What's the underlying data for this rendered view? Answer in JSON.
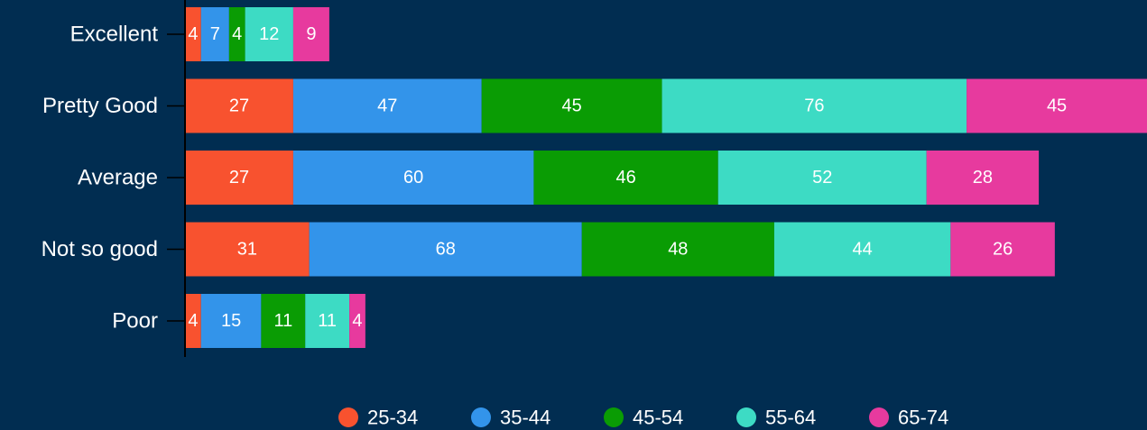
{
  "chart_data": {
    "type": "bar",
    "orientation": "horizontal",
    "stacked": true,
    "categories": [
      "Excellent",
      "Pretty Good",
      "Average",
      "Not so good",
      "Poor"
    ],
    "series": [
      {
        "name": "25-34",
        "color": "#f8522f",
        "values": [
          4,
          27,
          27,
          31,
          4
        ]
      },
      {
        "name": "35-44",
        "color": "#3394ea",
        "values": [
          7,
          47,
          60,
          68,
          15
        ]
      },
      {
        "name": "45-54",
        "color": "#0a9c04",
        "values": [
          4,
          45,
          46,
          48,
          11
        ]
      },
      {
        "name": "55-64",
        "color": "#3ddbc4",
        "values": [
          12,
          76,
          52,
          44,
          11
        ]
      },
      {
        "name": "65-74",
        "color": "#e73a9e",
        "values": [
          9,
          45,
          28,
          26,
          4
        ]
      }
    ],
    "data_labels": true,
    "legend_position": "bottom",
    "grid": false,
    "background": "#012d51"
  }
}
